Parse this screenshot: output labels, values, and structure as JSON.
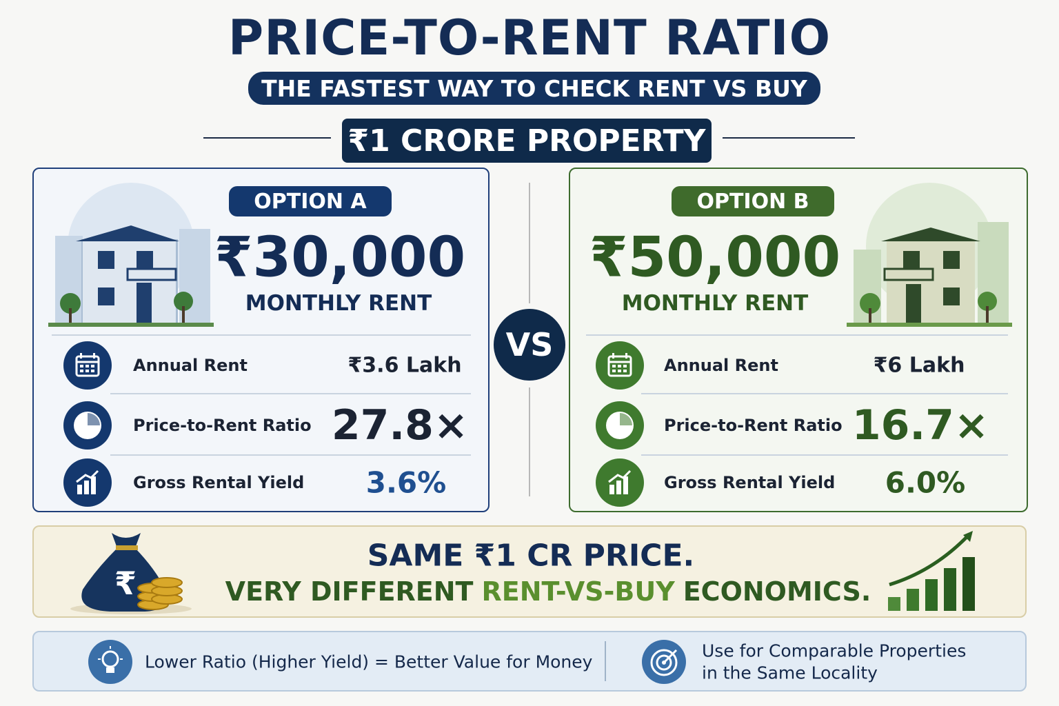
{
  "header": {
    "title": "PRICE-TO-RENT RATIO",
    "subtitle": "THE FASTEST WAY TO CHECK RENT VS BUY",
    "property": "₹1 CRORE PROPERTY"
  },
  "options": [
    {
      "label": "OPTION A",
      "rent": "₹30,000",
      "rent_label": "MONTHLY RENT",
      "rows": [
        [
          "Annual Rent",
          "₹3.6 Lakh"
        ],
        [
          "Price-to-Rent Ratio",
          "27.8×"
        ],
        [
          "Gross Rental Yield",
          "3.6%"
        ]
      ]
    },
    {
      "label": "OPTION B",
      "rent": "₹50,000",
      "rent_label": "MONTHLY RENT",
      "rows": [
        [
          "Annual Rent",
          "₹6 Lakh"
        ],
        [
          "Price-to-Rent Ratio",
          "16.7×"
        ],
        [
          "Gross Rental Yield",
          "6.0%"
        ]
      ]
    }
  ],
  "vs": "VS",
  "banner": {
    "line1": "SAME ₹1 CR PRICE.",
    "line2": [
      "VERY DIFFERENT",
      "RENT-VS-BUY",
      "ECONOMICS."
    ]
  },
  "tips": [
    {
      "text": [
        "Lower Ratio (Higher Yield) = Better Value for Money"
      ]
    },
    {
      "text": [
        "Use for Comparable Properties",
        "in the Same Locality"
      ]
    }
  ]
}
